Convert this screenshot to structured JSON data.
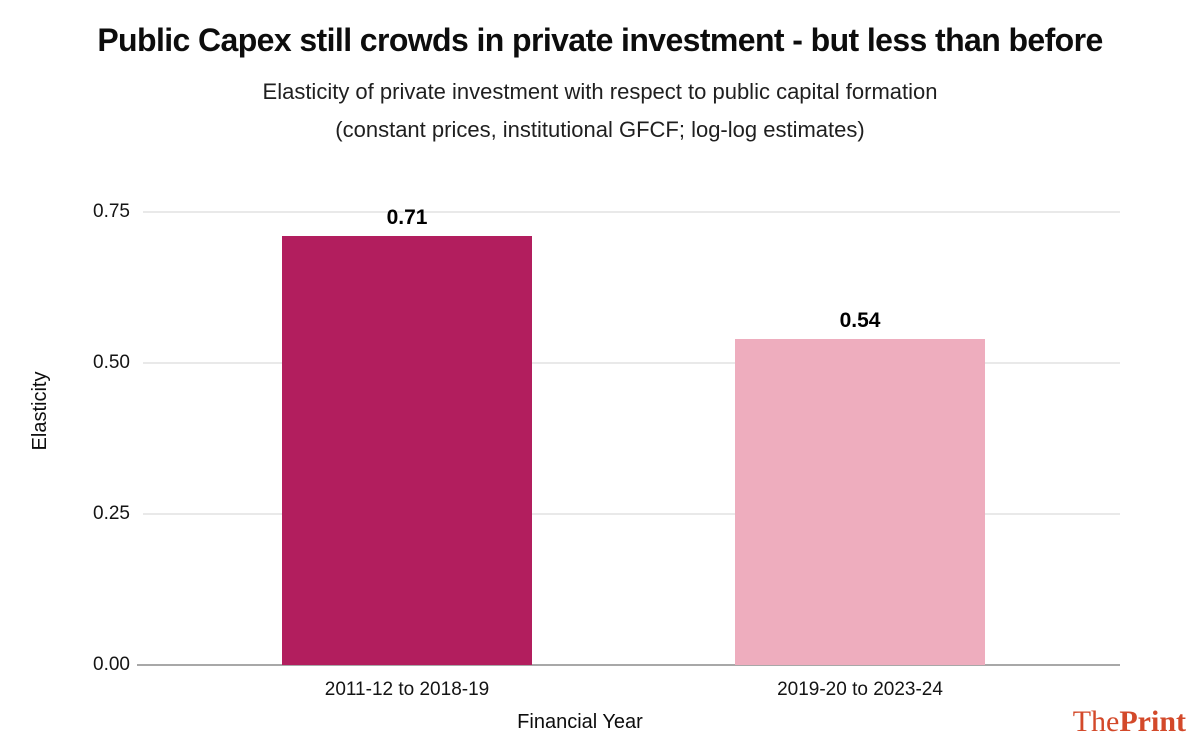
{
  "page": {
    "title": "Public Capex still crowds in private investment - but less than before",
    "subtitle_line1": "Elasticity of private investment with respect to public capital formation",
    "subtitle_line2": "(constant prices, institutional GFCF; log-log estimates)"
  },
  "chart_data": {
    "type": "bar",
    "title": "Public Capex still crowds in private investment - but less than before",
    "subtitle": "Elasticity of private investment with respect to public capital formation (constant prices, institutional GFCF; log-log estimates)",
    "categories": [
      "2011-12 to 2018-19",
      "2019-20 to 2023-24"
    ],
    "values": [
      0.71,
      0.54
    ],
    "value_labels": [
      "0.71",
      "0.54"
    ],
    "bar_colors": [
      "#b21e5e",
      "#eeadbe"
    ],
    "xlabel": "Financial Year",
    "ylabel": "Elasticity",
    "ylim": [
      0,
      0.75
    ],
    "yticks": [
      0,
      0.25,
      0.5,
      0.75
    ],
    "ytick_labels": [
      "0.00",
      "0.25",
      "0.50",
      "0.75"
    ],
    "grid": "horizontal gridlines only",
    "gridline_color": "#e9e9e9",
    "axis_line_color": "#a8a8a8",
    "legend": "none"
  },
  "branding": {
    "logo_the": "The",
    "logo_print": "Print",
    "logo_color": "#d3492a"
  }
}
